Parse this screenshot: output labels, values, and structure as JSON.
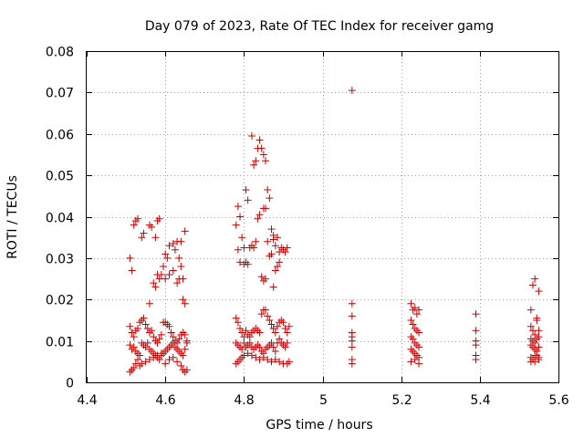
{
  "colors": {
    "marker": "#cc0000"
  },
  "chart_data": {
    "type": "scatter",
    "title": "Day 079 of 2023, Rate Of TEC Index for receiver gamg",
    "xlabel": "GPS time / hours",
    "ylabel": "ROTI / TECUs",
    "xlim": [
      4.4,
      5.6
    ],
    "ylim": [
      0,
      0.08
    ],
    "xticks": [
      4.4,
      4.6,
      4.8,
      5.0,
      5.2,
      5.4,
      5.6
    ],
    "xtick_labels": [
      "4.4",
      "4.6",
      "4.8",
      "5",
      "5.2",
      "5.4",
      "5.6"
    ],
    "yticks": [
      0,
      0.01,
      0.02,
      0.03,
      0.04,
      0.05,
      0.06,
      0.07,
      0.08
    ],
    "ytick_labels": [
      "0",
      "0.01",
      "0.02",
      "0.03",
      "0.04",
      "0.05",
      "0.06",
      "0.07",
      "0.08"
    ],
    "grid": true,
    "marker": "+",
    "series": [
      {
        "name": "ROTI",
        "points": [
          [
            4.51,
            0.03
          ],
          [
            4.515,
            0.027
          ],
          [
            4.52,
            0.038
          ],
          [
            4.525,
            0.039
          ],
          [
            4.53,
            0.0395
          ],
          [
            4.54,
            0.035
          ],
          [
            4.545,
            0.036
          ],
          [
            4.56,
            0.038
          ],
          [
            4.565,
            0.0375
          ],
          [
            4.575,
            0.035
          ],
          [
            4.58,
            0.039
          ],
          [
            4.585,
            0.0395
          ],
          [
            4.57,
            0.024
          ],
          [
            4.575,
            0.023
          ],
          [
            4.585,
            0.025
          ],
          [
            4.59,
            0.026
          ],
          [
            4.595,
            0.028
          ],
          [
            4.6,
            0.031
          ],
          [
            4.605,
            0.03
          ],
          [
            4.61,
            0.033
          ],
          [
            4.62,
            0.0335
          ],
          [
            4.625,
            0.032
          ],
          [
            4.63,
            0.034
          ],
          [
            4.635,
            0.03
          ],
          [
            4.64,
            0.034
          ],
          [
            4.645,
            0.025
          ],
          [
            4.65,
            0.0365
          ],
          [
            4.64,
            0.028
          ],
          [
            4.645,
            0.02
          ],
          [
            4.65,
            0.019
          ],
          [
            4.61,
            0.026
          ],
          [
            4.62,
            0.027
          ],
          [
            4.63,
            0.024
          ],
          [
            4.635,
            0.025
          ],
          [
            4.6,
            0.025
          ],
          [
            4.58,
            0.026
          ],
          [
            4.56,
            0.019
          ],
          [
            4.51,
            0.0135
          ],
          [
            4.515,
            0.012
          ],
          [
            4.52,
            0.011
          ],
          [
            4.525,
            0.0125
          ],
          [
            4.53,
            0.013
          ],
          [
            4.535,
            0.0145
          ],
          [
            4.54,
            0.015
          ],
          [
            4.545,
            0.0155
          ],
          [
            4.55,
            0.014
          ],
          [
            4.555,
            0.013
          ],
          [
            4.56,
            0.012
          ],
          [
            4.565,
            0.0125
          ],
          [
            4.57,
            0.011
          ],
          [
            4.575,
            0.01
          ],
          [
            4.58,
            0.0095
          ],
          [
            4.585,
            0.0105
          ],
          [
            4.59,
            0.0115
          ],
          [
            4.595,
            0.0145
          ],
          [
            4.6,
            0.0145
          ],
          [
            4.605,
            0.014
          ],
          [
            4.61,
            0.0135
          ],
          [
            4.615,
            0.012
          ],
          [
            4.62,
            0.011
          ],
          [
            4.625,
            0.01
          ],
          [
            4.63,
            0.0095
          ],
          [
            4.635,
            0.0105
          ],
          [
            4.64,
            0.0115
          ],
          [
            4.645,
            0.012
          ],
          [
            4.65,
            0.0115
          ],
          [
            4.655,
            0.01
          ],
          [
            4.51,
            0.009
          ],
          [
            4.515,
            0.008
          ],
          [
            4.52,
            0.0085
          ],
          [
            4.525,
            0.0075
          ],
          [
            4.53,
            0.007
          ],
          [
            4.535,
            0.0065
          ],
          [
            4.54,
            0.0095
          ],
          [
            4.545,
            0.009
          ],
          [
            4.55,
            0.0085
          ],
          [
            4.555,
            0.0095
          ],
          [
            4.56,
            0.008
          ],
          [
            4.565,
            0.0075
          ],
          [
            4.57,
            0.007
          ],
          [
            4.575,
            0.0065
          ],
          [
            4.58,
            0.006
          ],
          [
            4.585,
            0.0055
          ],
          [
            4.59,
            0.0065
          ],
          [
            4.595,
            0.007
          ],
          [
            4.6,
            0.0075
          ],
          [
            4.605,
            0.008
          ],
          [
            4.61,
            0.0085
          ],
          [
            4.615,
            0.009
          ],
          [
            4.62,
            0.0095
          ],
          [
            4.625,
            0.0085
          ],
          [
            4.63,
            0.008
          ],
          [
            4.635,
            0.0075
          ],
          [
            4.64,
            0.007
          ],
          [
            4.645,
            0.0065
          ],
          [
            4.65,
            0.008
          ],
          [
            4.655,
            0.0095
          ],
          [
            4.51,
            0.0025
          ],
          [
            4.515,
            0.003
          ],
          [
            4.52,
            0.0035
          ],
          [
            4.525,
            0.0045
          ],
          [
            4.53,
            0.0055
          ],
          [
            4.535,
            0.004
          ],
          [
            4.54,
            0.0045
          ],
          [
            4.55,
            0.005
          ],
          [
            4.56,
            0.0055
          ],
          [
            4.57,
            0.006
          ],
          [
            4.58,
            0.0065
          ],
          [
            4.59,
            0.007
          ],
          [
            4.6,
            0.0045
          ],
          [
            4.61,
            0.0055
          ],
          [
            4.62,
            0.006
          ],
          [
            4.63,
            0.005
          ],
          [
            4.64,
            0.004
          ],
          [
            4.645,
            0.003
          ],
          [
            4.65,
            0.0025
          ],
          [
            4.655,
            0.003
          ],
          [
            4.78,
            0.038
          ],
          [
            4.785,
            0.0425
          ],
          [
            4.79,
            0.04
          ],
          [
            4.795,
            0.035
          ],
          [
            4.8,
            0.0325
          ],
          [
            4.805,
            0.0465
          ],
          [
            4.81,
            0.044
          ],
          [
            4.815,
            0.0325
          ],
          [
            4.82,
            0.0595
          ],
          [
            4.825,
            0.0525
          ],
          [
            4.83,
            0.0535
          ],
          [
            4.835,
            0.0565
          ],
          [
            4.84,
            0.0585
          ],
          [
            4.845,
            0.0565
          ],
          [
            4.85,
            0.055
          ],
          [
            4.855,
            0.0535
          ],
          [
            4.86,
            0.0465
          ],
          [
            4.865,
            0.0445
          ],
          [
            4.835,
            0.0395
          ],
          [
            4.84,
            0.0405
          ],
          [
            4.85,
            0.042
          ],
          [
            4.855,
            0.042
          ],
          [
            4.87,
            0.037
          ],
          [
            4.875,
            0.0355
          ],
          [
            4.88,
            0.033
          ],
          [
            4.885,
            0.035
          ],
          [
            4.86,
            0.034
          ],
          [
            4.865,
            0.0305
          ],
          [
            4.87,
            0.031
          ],
          [
            4.875,
            0.0345
          ],
          [
            4.89,
            0.0315
          ],
          [
            4.895,
            0.0325
          ],
          [
            4.9,
            0.032
          ],
          [
            4.905,
            0.0315
          ],
          [
            4.91,
            0.0325
          ],
          [
            4.785,
            0.032
          ],
          [
            4.79,
            0.029
          ],
          [
            4.8,
            0.0285
          ],
          [
            4.805,
            0.029
          ],
          [
            4.81,
            0.0285
          ],
          [
            4.82,
            0.033
          ],
          [
            4.825,
            0.0325
          ],
          [
            4.83,
            0.034
          ],
          [
            4.845,
            0.0255
          ],
          [
            4.85,
            0.0245
          ],
          [
            4.855,
            0.025
          ],
          [
            4.875,
            0.023
          ],
          [
            4.88,
            0.027
          ],
          [
            4.885,
            0.028
          ],
          [
            4.89,
            0.029
          ],
          [
            4.78,
            0.0155
          ],
          [
            4.785,
            0.0145
          ],
          [
            4.79,
            0.013
          ],
          [
            4.795,
            0.012
          ],
          [
            4.8,
            0.011
          ],
          [
            4.805,
            0.0125
          ],
          [
            4.81,
            0.0115
          ],
          [
            4.815,
            0.011
          ],
          [
            4.82,
            0.012
          ],
          [
            4.825,
            0.0125
          ],
          [
            4.83,
            0.013
          ],
          [
            4.835,
            0.0125
          ],
          [
            4.84,
            0.012
          ],
          [
            4.845,
            0.0165
          ],
          [
            4.85,
            0.0175
          ],
          [
            4.855,
            0.0175
          ],
          [
            4.86,
            0.016
          ],
          [
            4.865,
            0.015
          ],
          [
            4.87,
            0.014
          ],
          [
            4.875,
            0.013
          ],
          [
            4.88,
            0.012
          ],
          [
            4.885,
            0.0135
          ],
          [
            4.89,
            0.0145
          ],
          [
            4.895,
            0.015
          ],
          [
            4.9,
            0.0145
          ],
          [
            4.905,
            0.013
          ],
          [
            4.91,
            0.012
          ],
          [
            4.915,
            0.0135
          ],
          [
            4.78,
            0.0095
          ],
          [
            4.785,
            0.009
          ],
          [
            4.79,
            0.0085
          ],
          [
            4.795,
            0.008
          ],
          [
            4.8,
            0.0095
          ],
          [
            4.805,
            0.0085
          ],
          [
            4.81,
            0.009
          ],
          [
            4.815,
            0.0095
          ],
          [
            4.82,
            0.0085
          ],
          [
            4.825,
            0.008
          ],
          [
            4.83,
            0.0085
          ],
          [
            4.835,
            0.009
          ],
          [
            4.84,
            0.0085
          ],
          [
            4.845,
            0.0075
          ],
          [
            4.85,
            0.007
          ],
          [
            4.855,
            0.008
          ],
          [
            4.86,
            0.0085
          ],
          [
            4.865,
            0.009
          ],
          [
            4.87,
            0.0095
          ],
          [
            4.875,
            0.0085
          ],
          [
            4.88,
            0.0075
          ],
          [
            4.885,
            0.0095
          ],
          [
            4.89,
            0.0105
          ],
          [
            4.895,
            0.0095
          ],
          [
            4.9,
            0.009
          ],
          [
            4.905,
            0.0085
          ],
          [
            4.91,
            0.0095
          ],
          [
            4.78,
            0.0045
          ],
          [
            4.785,
            0.005
          ],
          [
            4.79,
            0.0055
          ],
          [
            4.795,
            0.006
          ],
          [
            4.8,
            0.0065
          ],
          [
            4.81,
            0.007
          ],
          [
            4.82,
            0.0065
          ],
          [
            4.83,
            0.006
          ],
          [
            4.84,
            0.0055
          ],
          [
            4.85,
            0.006
          ],
          [
            4.86,
            0.0055
          ],
          [
            4.87,
            0.005
          ],
          [
            4.88,
            0.0055
          ],
          [
            4.89,
            0.005
          ],
          [
            4.9,
            0.0045
          ],
          [
            4.91,
            0.0045
          ],
          [
            4.915,
            0.005
          ],
          [
            5.075,
            0.0705
          ],
          [
            5.075,
            0.019
          ],
          [
            5.075,
            0.016
          ],
          [
            5.075,
            0.012
          ],
          [
            5.075,
            0.011
          ],
          [
            5.075,
            0.01
          ],
          [
            5.075,
            0.0085
          ],
          [
            5.075,
            0.0055
          ],
          [
            5.075,
            0.0045
          ],
          [
            5.225,
            0.019
          ],
          [
            5.23,
            0.0175
          ],
          [
            5.235,
            0.018
          ],
          [
            5.24,
            0.0165
          ],
          [
            5.245,
            0.0175
          ],
          [
            5.225,
            0.015
          ],
          [
            5.23,
            0.014
          ],
          [
            5.235,
            0.013
          ],
          [
            5.24,
            0.0125
          ],
          [
            5.245,
            0.012
          ],
          [
            5.225,
            0.011
          ],
          [
            5.23,
            0.0105
          ],
          [
            5.235,
            0.0095
          ],
          [
            5.24,
            0.009
          ],
          [
            5.245,
            0.0085
          ],
          [
            5.225,
            0.008
          ],
          [
            5.23,
            0.0075
          ],
          [
            5.235,
            0.007
          ],
          [
            5.24,
            0.0065
          ],
          [
            5.245,
            0.006
          ],
          [
            5.225,
            0.005
          ],
          [
            5.235,
            0.0055
          ],
          [
            5.245,
            0.0045
          ],
          [
            5.39,
            0.0165
          ],
          [
            5.39,
            0.0125
          ],
          [
            5.39,
            0.01
          ],
          [
            5.39,
            0.009
          ],
          [
            5.39,
            0.0065
          ],
          [
            5.39,
            0.0055
          ],
          [
            5.53,
            0.0175
          ],
          [
            5.535,
            0.0235
          ],
          [
            5.54,
            0.025
          ],
          [
            5.545,
            0.0155
          ],
          [
            5.55,
            0.022
          ],
          [
            5.53,
            0.0135
          ],
          [
            5.535,
            0.0125
          ],
          [
            5.54,
            0.0115
          ],
          [
            5.545,
            0.015
          ],
          [
            5.55,
            0.0125
          ],
          [
            5.53,
            0.0105
          ],
          [
            5.535,
            0.01
          ],
          [
            5.54,
            0.0095
          ],
          [
            5.545,
            0.0105
          ],
          [
            5.55,
            0.011
          ],
          [
            5.53,
            0.009
          ],
          [
            5.535,
            0.0085
          ],
          [
            5.54,
            0.008
          ],
          [
            5.545,
            0.0075
          ],
          [
            5.55,
            0.0085
          ],
          [
            5.53,
            0.006
          ],
          [
            5.535,
            0.0055
          ],
          [
            5.54,
            0.005
          ],
          [
            5.545,
            0.0065
          ],
          [
            5.55,
            0.006
          ],
          [
            5.53,
            0.005
          ],
          [
            5.54,
            0.0065
          ],
          [
            5.55,
            0.0055
          ]
        ]
      }
    ]
  }
}
